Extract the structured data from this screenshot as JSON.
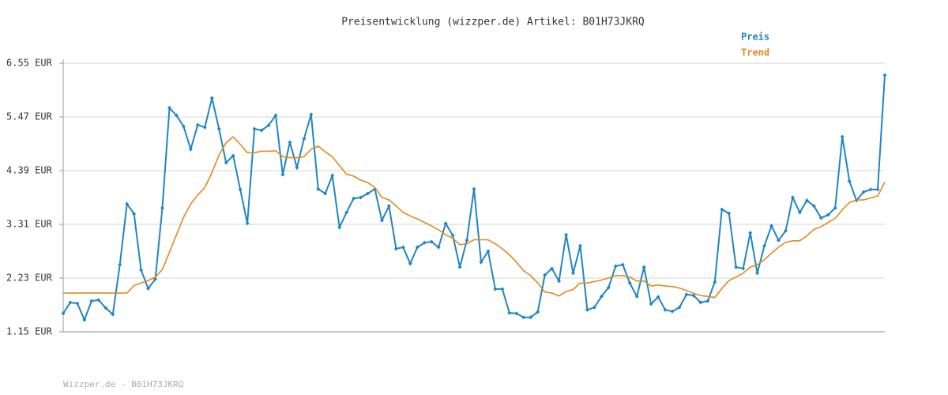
{
  "chart_data": {
    "type": "line",
    "title": "Preisentwicklung (wizzper.de) Artikel: B01H73JKRQ",
    "footer": "Wizzper.de - B01H73JKRQ",
    "ylim": [
      1.15,
      6.55
    ],
    "yticks": [
      {
        "value": 1.15,
        "label": "1.15 EUR"
      },
      {
        "value": 2.23,
        "label": "2.23 EUR"
      },
      {
        "value": 3.31,
        "label": "3.31 EUR"
      },
      {
        "value": 4.39,
        "label": "4.39 EUR"
      },
      {
        "value": 5.47,
        "label": "5.47 EUR"
      },
      {
        "value": 6.55,
        "label": "6.55 EUR"
      }
    ],
    "grid": true,
    "legend": "top-right",
    "series": [
      {
        "name": "Preis",
        "color": "#1f86c4",
        "markers": true,
        "values": [
          1.52,
          1.74,
          1.72,
          1.39,
          1.77,
          1.79,
          1.63,
          1.5,
          2.5,
          3.72,
          3.52,
          2.39,
          2.02,
          2.21,
          3.64,
          5.65,
          5.5,
          5.28,
          4.82,
          5.31,
          5.26,
          5.85,
          5.23,
          4.55,
          4.69,
          4.01,
          3.33,
          5.23,
          5.2,
          5.3,
          5.5,
          4.31,
          4.96,
          4.45,
          5.03,
          5.52,
          4.02,
          3.93,
          4.29,
          3.25,
          3.55,
          3.83,
          3.85,
          3.93,
          4.02,
          3.39,
          3.68,
          2.82,
          2.85,
          2.52,
          2.85,
          2.94,
          2.96,
          2.85,
          3.33,
          3.09,
          2.45,
          2.99,
          4.02,
          2.55,
          2.77,
          2.01,
          2.01,
          1.53,
          1.52,
          1.44,
          1.44,
          1.55,
          2.29,
          2.42,
          2.17,
          3.1,
          2.33,
          2.88,
          1.59,
          1.64,
          1.86,
          2.04,
          2.47,
          2.5,
          2.13,
          1.86,
          2.45,
          1.71,
          1.85,
          1.59,
          1.56,
          1.64,
          1.9,
          1.88,
          1.74,
          1.77,
          2.15,
          3.61,
          3.53,
          2.45,
          2.42,
          3.14,
          2.33,
          2.88,
          3.28,
          2.99,
          3.18,
          3.85,
          3.55,
          3.79,
          3.68,
          3.44,
          3.5,
          3.64,
          5.07,
          4.18,
          3.79,
          3.96,
          4.01,
          4.01,
          6.31
        ]
      },
      {
        "name": "Trend",
        "color": "#e08a1e",
        "markers": false,
        "values": [
          1.93,
          1.93,
          1.93,
          1.93,
          1.93,
          1.93,
          1.93,
          1.93,
          1.93,
          1.93,
          2.08,
          2.13,
          2.18,
          2.25,
          2.4,
          2.75,
          3.1,
          3.45,
          3.72,
          3.9,
          4.05,
          4.35,
          4.7,
          4.95,
          5.07,
          4.92,
          4.75,
          4.75,
          4.78,
          4.78,
          4.79,
          4.67,
          4.65,
          4.65,
          4.67,
          4.82,
          4.88,
          4.77,
          4.67,
          4.49,
          4.32,
          4.28,
          4.2,
          4.15,
          4.05,
          3.85,
          3.8,
          3.68,
          3.55,
          3.48,
          3.42,
          3.35,
          3.28,
          3.2,
          3.1,
          3.03,
          2.9,
          2.92,
          3.0,
          3.0,
          3.0,
          2.92,
          2.82,
          2.7,
          2.55,
          2.38,
          2.28,
          2.13,
          1.95,
          1.93,
          1.87,
          1.96,
          2.0,
          2.13,
          2.13,
          2.16,
          2.19,
          2.23,
          2.28,
          2.28,
          2.25,
          2.17,
          2.17,
          2.07,
          2.09,
          2.07,
          2.06,
          2.03,
          1.98,
          1.92,
          1.88,
          1.86,
          1.84,
          2.02,
          2.18,
          2.25,
          2.33,
          2.45,
          2.5,
          2.6,
          2.73,
          2.85,
          2.95,
          2.98,
          2.98,
          3.08,
          3.21,
          3.26,
          3.35,
          3.43,
          3.6,
          3.75,
          3.8,
          3.8,
          3.84,
          3.88,
          4.16
        ]
      }
    ]
  }
}
